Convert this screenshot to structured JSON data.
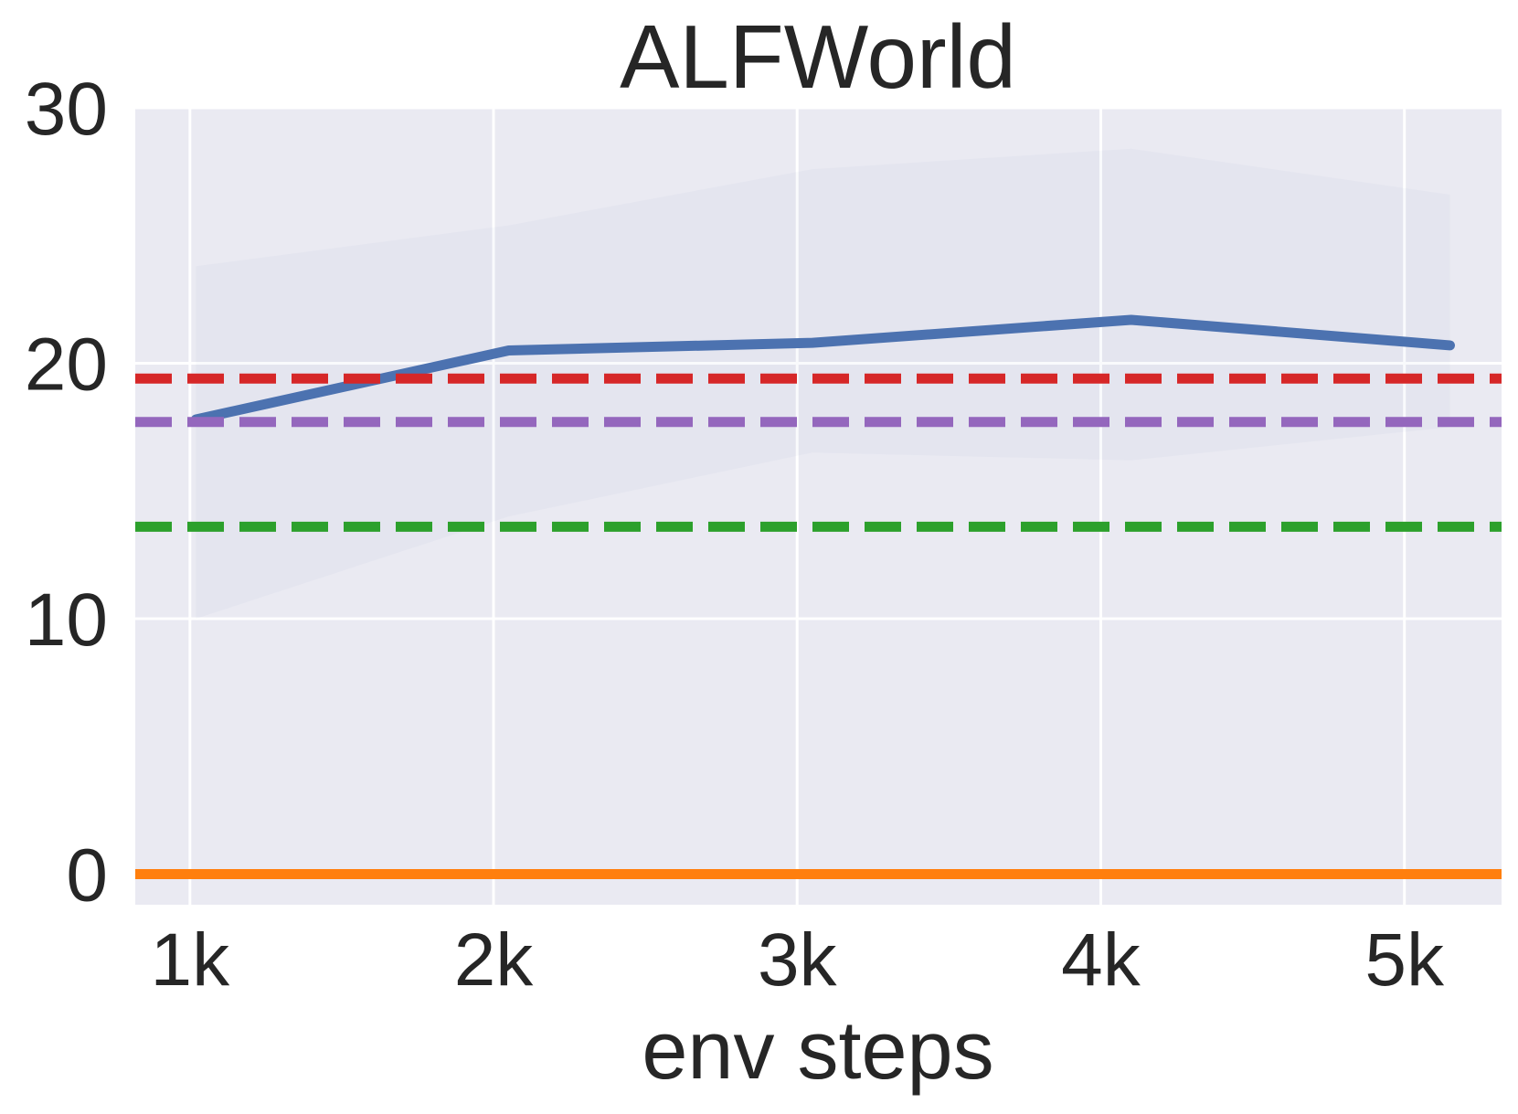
{
  "chart_data": {
    "type": "line",
    "title": "ALFWorld",
    "xlabel": "env steps",
    "ylabel": "",
    "xlim": [
      820,
      5320
    ],
    "ylim": [
      -1.2,
      30
    ],
    "x_ticks": [
      1000,
      2000,
      3000,
      4000,
      5000
    ],
    "x_tick_labels": [
      "1k",
      "2k",
      "3k",
      "4k",
      "5k"
    ],
    "y_ticks": [
      0,
      10,
      20,
      30
    ],
    "y_tick_labels": [
      "0",
      "10",
      "20",
      "30"
    ],
    "grid": true,
    "background": "#eaeaf2",
    "series": [
      {
        "style": "solid",
        "color": "#4c72b0",
        "x": [
          1020,
          2050,
          3050,
          4100,
          5150
        ],
        "y": [
          17.8,
          20.5,
          20.8,
          21.7,
          20.7
        ],
        "band_upper": [
          23.8,
          25.4,
          27.6,
          28.4,
          26.6
        ],
        "band_lower": [
          10.0,
          14.0,
          16.5,
          16.2,
          17.5
        ]
      },
      {
        "style": "dashed",
        "color": "#d62728",
        "y_const": 19.4
      },
      {
        "style": "dashed",
        "color": "#9467bd",
        "y_const": 17.7
      },
      {
        "style": "dashed",
        "color": "#2ca02c",
        "y_const": 13.6
      },
      {
        "style": "solid",
        "color": "#ff7f0e",
        "y_const": 0
      }
    ]
  }
}
